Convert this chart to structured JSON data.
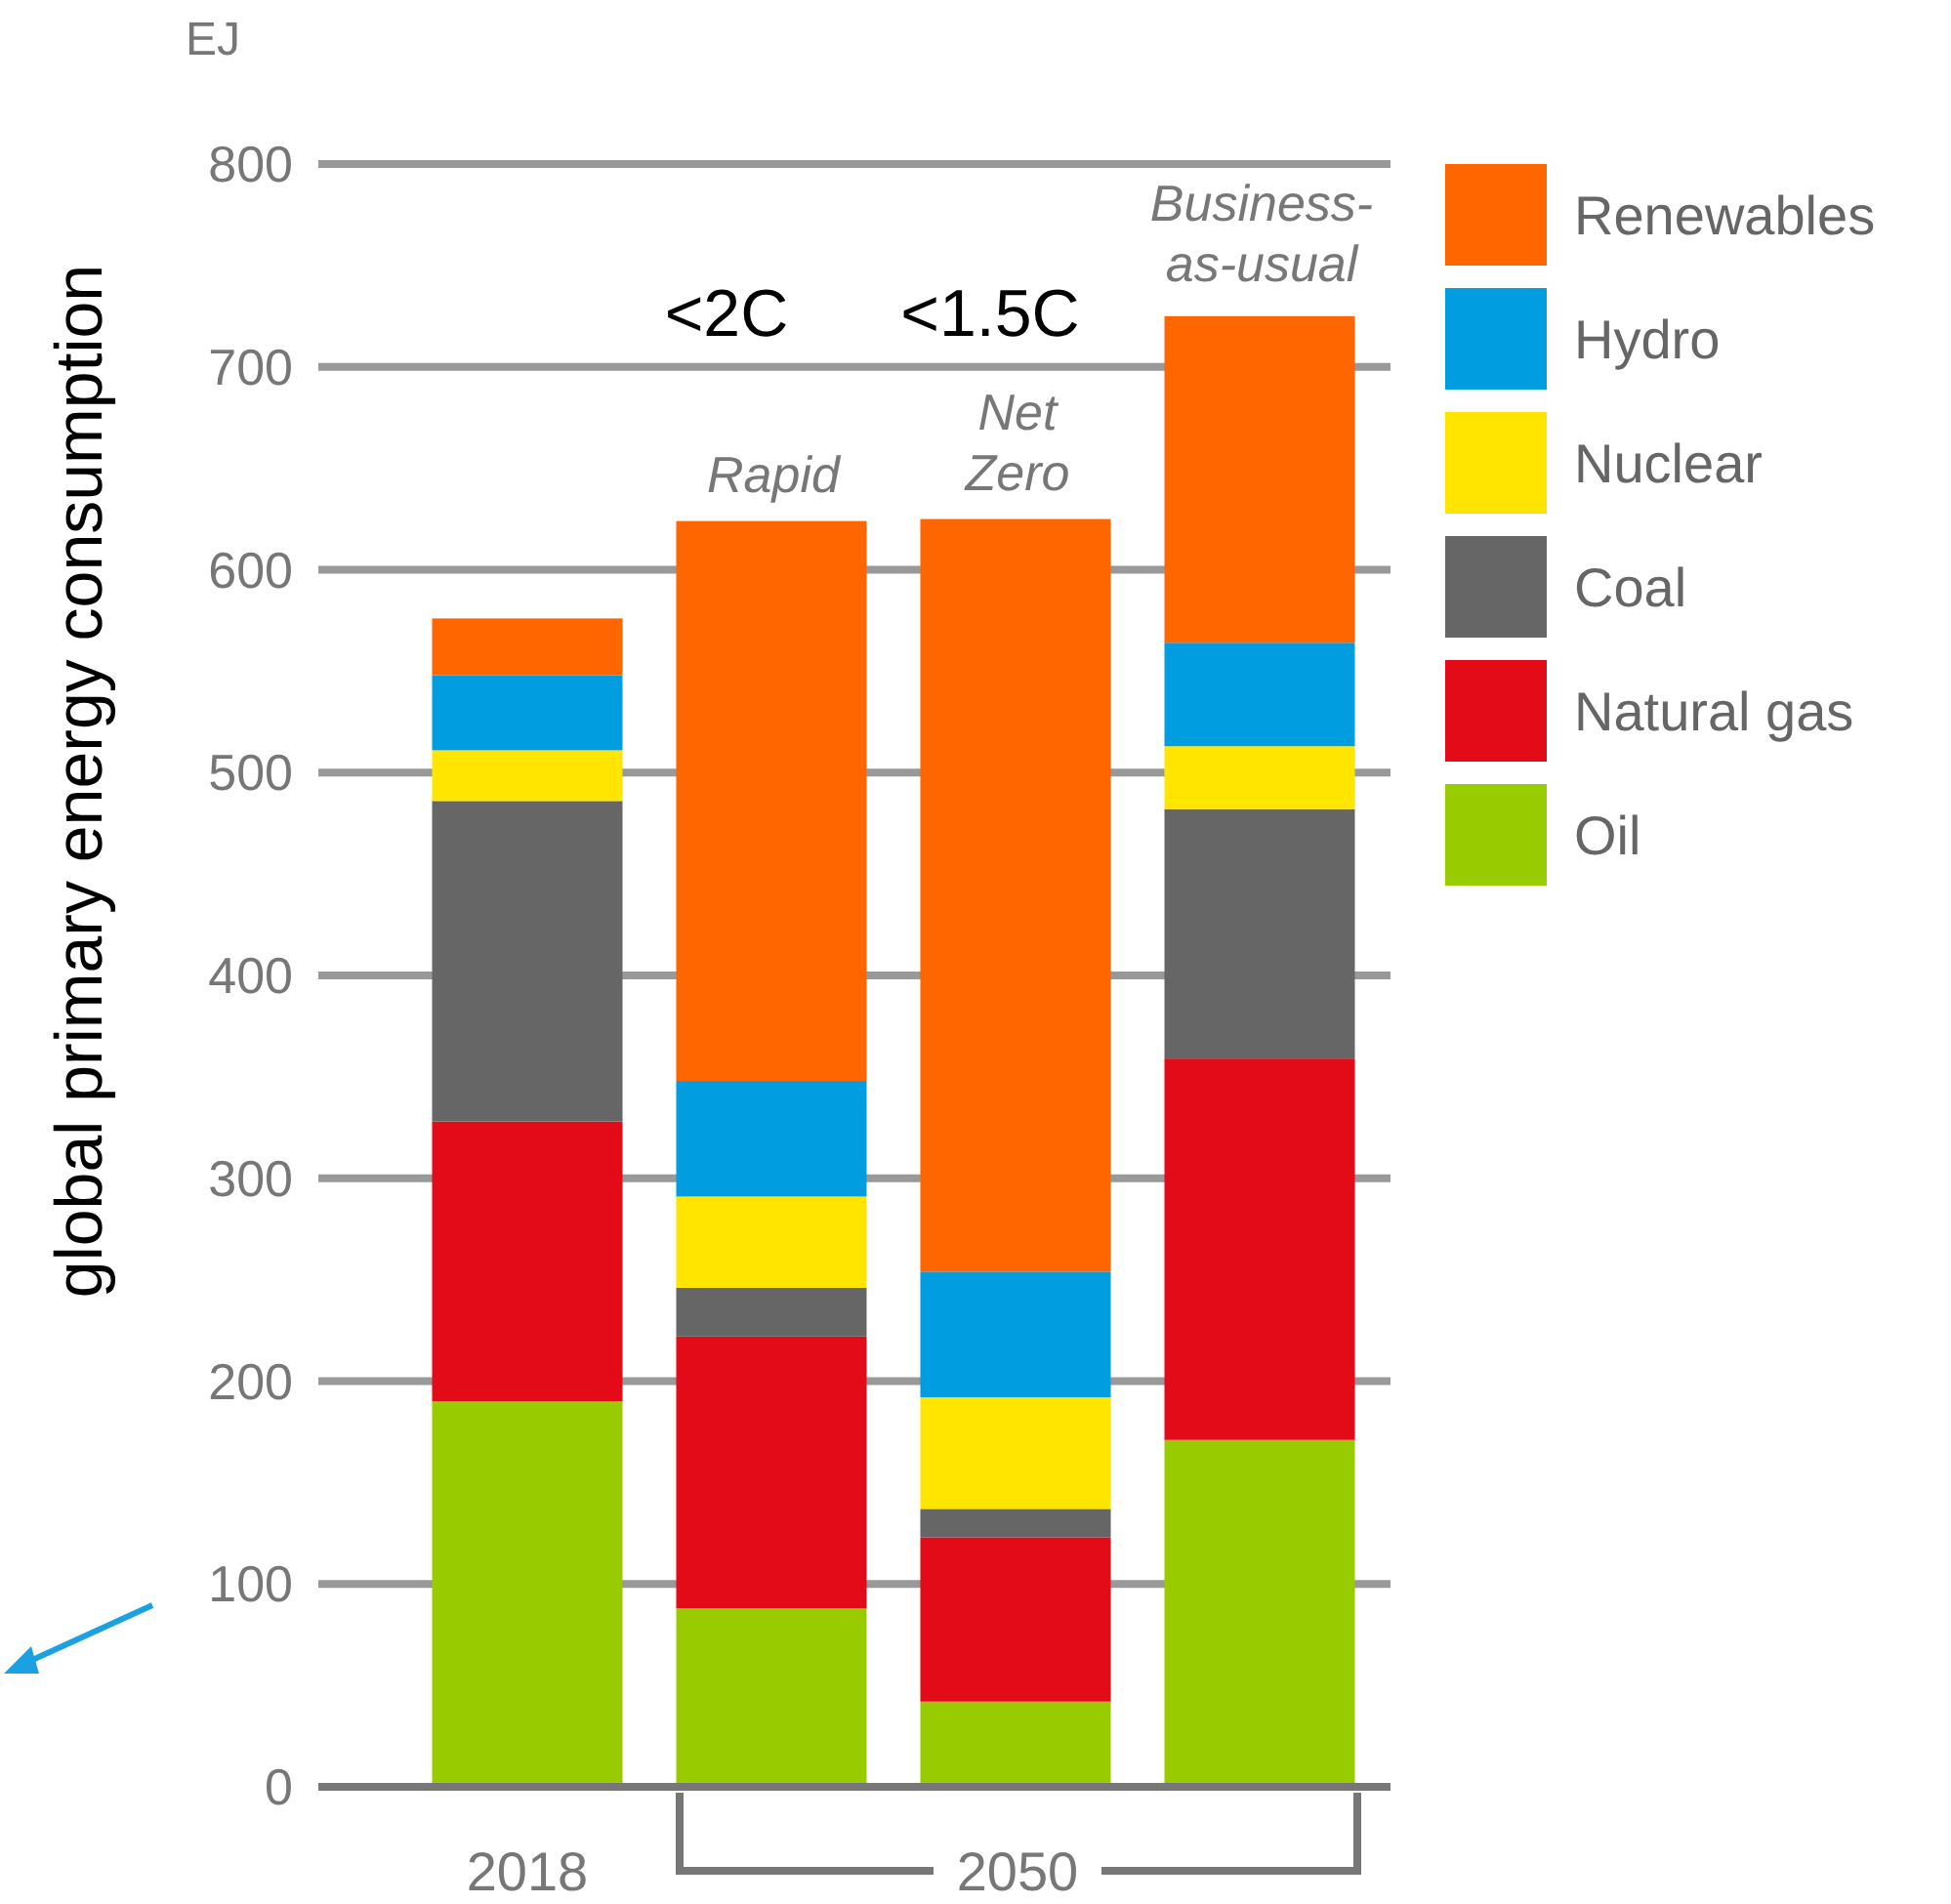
{
  "chart_data": {
    "type": "bar",
    "stacked": true,
    "ylabel": "global primary energy consumption",
    "categories": [
      "2018",
      null,
      null,
      null
    ],
    "series": [
      {
        "name": "Oil",
        "color": "#99cc00",
        "values": [
          190,
          88,
          42,
          171
        ]
      },
      {
        "name": "Natural gas",
        "color": "#e30b17",
        "values": [
          138,
          134,
          81,
          188
        ]
      },
      {
        "name": "Coal",
        "color": "#666666",
        "values": [
          158,
          24,
          14,
          123
        ]
      },
      {
        "name": "Nuclear",
        "color": "#ffe500",
        "values": [
          25,
          45,
          55,
          31
        ]
      },
      {
        "name": "Hydro",
        "color": "#009ee0",
        "values": [
          37,
          57,
          62,
          51
        ]
      },
      {
        "name": "Renewables",
        "color": "#ff6600",
        "values": [
          28,
          276,
          371,
          161
        ]
      }
    ],
    "ylim": [
      0,
      800
    ],
    "yticks": [
      0,
      100,
      200,
      300,
      400,
      500,
      600,
      700,
      800
    ],
    "grid": "y",
    "legend": "right",
    "annotations": [
      "EJ",
      "<2C",
      "<1.5C",
      "Rapid",
      "Net Zero",
      "Business-as-usual",
      "2050"
    ]
  }
}
